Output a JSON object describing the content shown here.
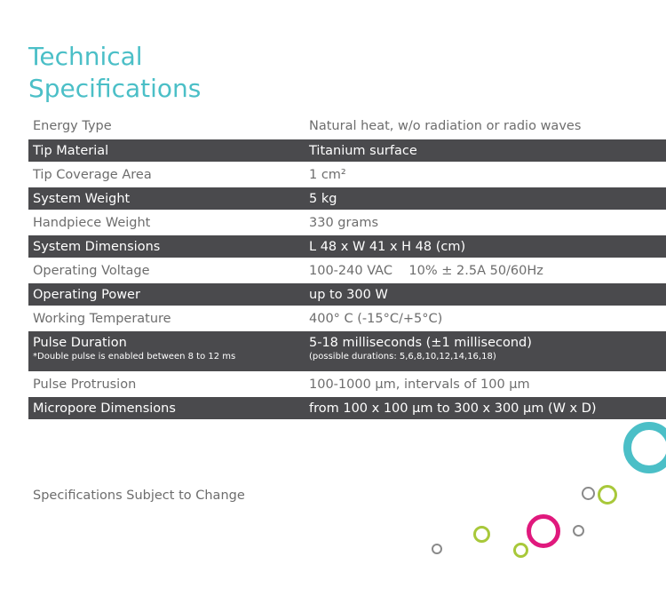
{
  "title": {
    "line1": "Technical",
    "line2": "Specifications"
  },
  "specs": [
    {
      "label": "Energy Type",
      "value": "Natural heat, w/o radiation or radio waves"
    },
    {
      "label": "Tip Material",
      "value": "Titanium surface"
    },
    {
      "label": "Tip Coverage Area",
      "value": "1 cm²"
    },
    {
      "label": "System Weight",
      "value": "5 kg"
    },
    {
      "label": "Handpiece Weight",
      "value": "330 grams"
    },
    {
      "label": "System Dimensions",
      "value": "L 48 x W 41 x H 48 (cm)"
    },
    {
      "label": "Operating Voltage",
      "value": "100-240 VAC    10% ± 2.5A 50/60Hz"
    },
    {
      "label": "Operating Power",
      "value": "up to 300 W"
    },
    {
      "label": "Working Temperature",
      "value": "400° C (-15°C/+5°C)"
    },
    {
      "label": "Pulse Duration",
      "value": "5-18 milliseconds (±1 millisecond)",
      "label_note": "*Double pulse is enabled between 8 to 12 ms",
      "value_note": "(possible durations: 5,6,8,10,12,14,16,18)"
    },
    {
      "label": "Pulse Protrusion",
      "value": "100-1000 µm, intervals of 100 µm"
    },
    {
      "label": "Micropore Dimensions",
      "value": "from 100 x 100 µm to 300 x 300 µm (W x D)"
    }
  ],
  "footer": "Specifications Subject to Change",
  "colors": {
    "accent_teal": "#4bbfc7",
    "dark_row": "#4a4a4d",
    "magenta": "#e0197d",
    "lime": "#a8c83a",
    "gray": "#8a8a8a"
  }
}
